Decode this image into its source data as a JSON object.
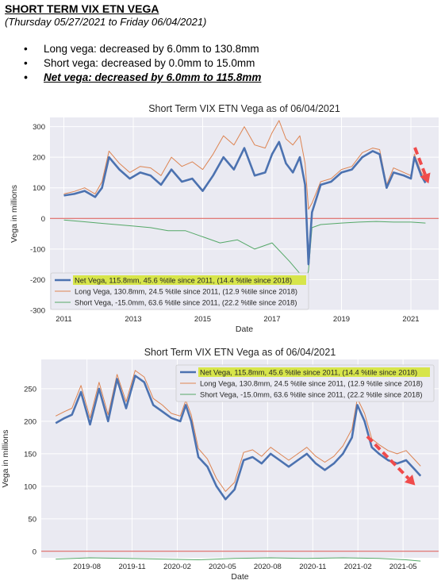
{
  "header": {
    "title": "SHORT TERM VIX ETN VEGA",
    "subtitle": "(Thursday 05/27/2021 to Friday 06/04/2021)"
  },
  "bullets": [
    {
      "dot": "•",
      "text": "Long vega: decreased by 6.0mm to 130.8mm"
    },
    {
      "dot": "•",
      "text": "Short vega: decreased by 0.0mm to 15.0mm"
    },
    {
      "dot": "•",
      "text": "Net vega: decreased by 6.0mm to 115.8mm"
    }
  ],
  "colors": {
    "net": "#4c72b0",
    "long": "#dd8452",
    "short": "#55a868",
    "zero_line": "#d9534f",
    "arrow": "#f04b4b",
    "highlight": "#d7e54a",
    "plot_bg": "#eaeaf2"
  },
  "chart_data": [
    {
      "type": "line",
      "title": "Short Term VIX ETN Vega as of 06/04/2021",
      "xlabel": "Date",
      "ylabel": "Vega in millions",
      "xlim": [
        2010.6,
        2021.8
      ],
      "ylim": [
        -300,
        330
      ],
      "xticks": [
        "2011",
        "2013",
        "2015",
        "2017",
        "2019",
        "2021"
      ],
      "xtick_values": [
        2011,
        2013,
        2015,
        2017,
        2019,
        2021
      ],
      "yticks": [
        -300,
        -200,
        -100,
        0,
        100,
        200,
        300
      ],
      "grid": true,
      "legend_position": "lower-left",
      "zero_line": 0,
      "annotation": "red dashed arrow pointing down at the end of the series",
      "series": [
        {
          "name": "Net Vega, 115.8mm, 45.6 %tile since 2011, (14.4 %tile since 2018)",
          "highlighted": true,
          "x": [
            2011.0,
            2011.3,
            2011.6,
            2011.9,
            2012.1,
            2012.3,
            2012.6,
            2012.9,
            2013.2,
            2013.5,
            2013.8,
            2014.1,
            2014.4,
            2014.7,
            2015.0,
            2015.3,
            2015.6,
            2015.9,
            2016.2,
            2016.5,
            2016.8,
            2017.0,
            2017.2,
            2017.4,
            2017.6,
            2017.8,
            2017.95,
            2018.05,
            2018.15,
            2018.4,
            2018.7,
            2019.0,
            2019.3,
            2019.6,
            2019.9,
            2020.1,
            2020.3,
            2020.5,
            2020.8,
            2021.0,
            2021.1,
            2021.3,
            2021.42
          ],
          "values": [
            75,
            80,
            90,
            70,
            100,
            200,
            160,
            130,
            150,
            140,
            110,
            160,
            120,
            130,
            90,
            140,
            200,
            160,
            230,
            140,
            150,
            210,
            250,
            180,
            150,
            200,
            110,
            -150,
            20,
            110,
            120,
            150,
            160,
            200,
            220,
            210,
            100,
            150,
            140,
            130,
            200,
            140,
            116
          ]
        },
        {
          "name": "Long Vega, 130.8mm, 24.5 %tile since 2011, (12.9 %tile since 2018)",
          "x": [
            2011.0,
            2011.3,
            2011.6,
            2011.9,
            2012.1,
            2012.3,
            2012.6,
            2012.9,
            2013.2,
            2013.5,
            2013.8,
            2014.1,
            2014.4,
            2014.7,
            2015.0,
            2015.3,
            2015.6,
            2015.9,
            2016.2,
            2016.5,
            2016.8,
            2017.0,
            2017.2,
            2017.4,
            2017.6,
            2017.8,
            2017.95,
            2018.05,
            2018.15,
            2018.4,
            2018.7,
            2019.0,
            2019.3,
            2019.6,
            2019.9,
            2020.1,
            2020.3,
            2020.5,
            2020.8,
            2021.0,
            2021.1,
            2021.3,
            2021.42
          ],
          "values": [
            80,
            88,
            100,
            80,
            120,
            220,
            180,
            150,
            170,
            165,
            140,
            200,
            170,
            185,
            160,
            210,
            270,
            240,
            300,
            240,
            230,
            280,
            320,
            260,
            240,
            270,
            180,
            30,
            50,
            120,
            130,
            160,
            170,
            215,
            230,
            225,
            110,
            165,
            150,
            140,
            210,
            150,
            131
          ]
        },
        {
          "name": "Short Vega, -15.0mm, 63.6 %tile since 2011, (22.2 %tile since 2018)",
          "x": [
            2011.0,
            2011.5,
            2012.0,
            2012.5,
            2013.0,
            2013.5,
            2014.0,
            2014.5,
            2015.0,
            2015.5,
            2016.0,
            2016.5,
            2017.0,
            2017.5,
            2017.8,
            2017.95,
            2018.05,
            2018.15,
            2018.4,
            2019.0,
            2019.5,
            2020.0,
            2020.5,
            2021.0,
            2021.42
          ],
          "values": [
            -5,
            -10,
            -15,
            -20,
            -25,
            -30,
            -40,
            -40,
            -60,
            -80,
            -70,
            -100,
            -80,
            -140,
            -180,
            -220,
            -170,
            -30,
            -20,
            -15,
            -12,
            -10,
            -12,
            -12,
            -15
          ]
        }
      ]
    },
    {
      "type": "line",
      "title": "Short Term VIX ETN Vega as of 06/04/2021",
      "xlabel": "Date",
      "ylabel": "Vega in millions",
      "xlim": [
        2019.33,
        2021.53
      ],
      "ylim": [
        -10,
        295
      ],
      "xticks": [
        "2019-08",
        "2019-11",
        "2020-02",
        "2020-05",
        "2020-08",
        "2020-11",
        "2021-02",
        "2021-05"
      ],
      "xtick_values": [
        2019.583,
        2019.833,
        2020.083,
        2020.333,
        2020.583,
        2020.833,
        2021.083,
        2021.333
      ],
      "yticks": [
        0,
        50,
        100,
        150,
        200,
        250
      ],
      "grid": true,
      "legend_position": "top-right",
      "zero_line": 0,
      "annotation": "red dashed arrow pointing down toward the end of the series",
      "series": [
        {
          "name": "Net Vega, 115.8mm, 45.6 %tile since 2011, (14.4 %tile since 2018)",
          "highlighted": true,
          "x": [
            2019.41,
            2019.46,
            2019.5,
            2019.55,
            2019.6,
            2019.65,
            2019.7,
            2019.75,
            2019.8,
            2019.85,
            2019.9,
            2019.95,
            2020.0,
            2020.05,
            2020.1,
            2020.13,
            2020.16,
            2020.2,
            2020.25,
            2020.3,
            2020.35,
            2020.4,
            2020.45,
            2020.5,
            2020.55,
            2020.6,
            2020.65,
            2020.7,
            2020.75,
            2020.8,
            2020.85,
            2020.9,
            2020.95,
            2021.0,
            2021.05,
            2021.08,
            2021.12,
            2021.16,
            2021.2,
            2021.25,
            2021.3,
            2021.35,
            2021.4,
            2021.43
          ],
          "values": [
            197,
            205,
            210,
            245,
            195,
            250,
            200,
            265,
            220,
            270,
            260,
            225,
            215,
            205,
            200,
            225,
            200,
            145,
            130,
            100,
            80,
            95,
            140,
            145,
            135,
            150,
            140,
            130,
            140,
            150,
            135,
            125,
            135,
            150,
            175,
            225,
            200,
            160,
            150,
            140,
            135,
            140,
            125,
            116
          ]
        },
        {
          "name": "Long Vega, 130.8mm, 24.5 %tile since 2011, (12.9 %tile since 2018)",
          "x": [
            2019.41,
            2019.46,
            2019.5,
            2019.55,
            2019.6,
            2019.65,
            2019.7,
            2019.75,
            2019.8,
            2019.85,
            2019.9,
            2019.95,
            2020.0,
            2020.05,
            2020.1,
            2020.13,
            2020.16,
            2020.2,
            2020.25,
            2020.3,
            2020.35,
            2020.4,
            2020.45,
            2020.5,
            2020.55,
            2020.6,
            2020.65,
            2020.7,
            2020.75,
            2020.8,
            2020.85,
            2020.9,
            2020.95,
            2021.0,
            2021.05,
            2021.08,
            2021.12,
            2021.16,
            2021.2,
            2021.25,
            2021.3,
            2021.35,
            2021.4,
            2021.43
          ],
          "values": [
            208,
            215,
            220,
            255,
            205,
            260,
            210,
            272,
            230,
            278,
            268,
            235,
            225,
            212,
            208,
            232,
            210,
            158,
            142,
            112,
            92,
            106,
            152,
            156,
            146,
            160,
            150,
            140,
            150,
            160,
            146,
            137,
            146,
            162,
            188,
            235,
            212,
            173,
            164,
            155,
            150,
            155,
            140,
            131
          ]
        },
        {
          "name": "Short Vega, -15.0mm, 63.6 %tile since 2011, (22.2 %tile since 2018)",
          "x": [
            2019.41,
            2019.6,
            2019.8,
            2020.0,
            2020.2,
            2020.4,
            2020.6,
            2020.8,
            2021.0,
            2021.2,
            2021.35,
            2021.43
          ],
          "values": [
            -12,
            -10,
            -11,
            -12,
            -13,
            -11,
            -10,
            -11,
            -10,
            -11,
            -13,
            -15
          ]
        }
      ]
    }
  ]
}
